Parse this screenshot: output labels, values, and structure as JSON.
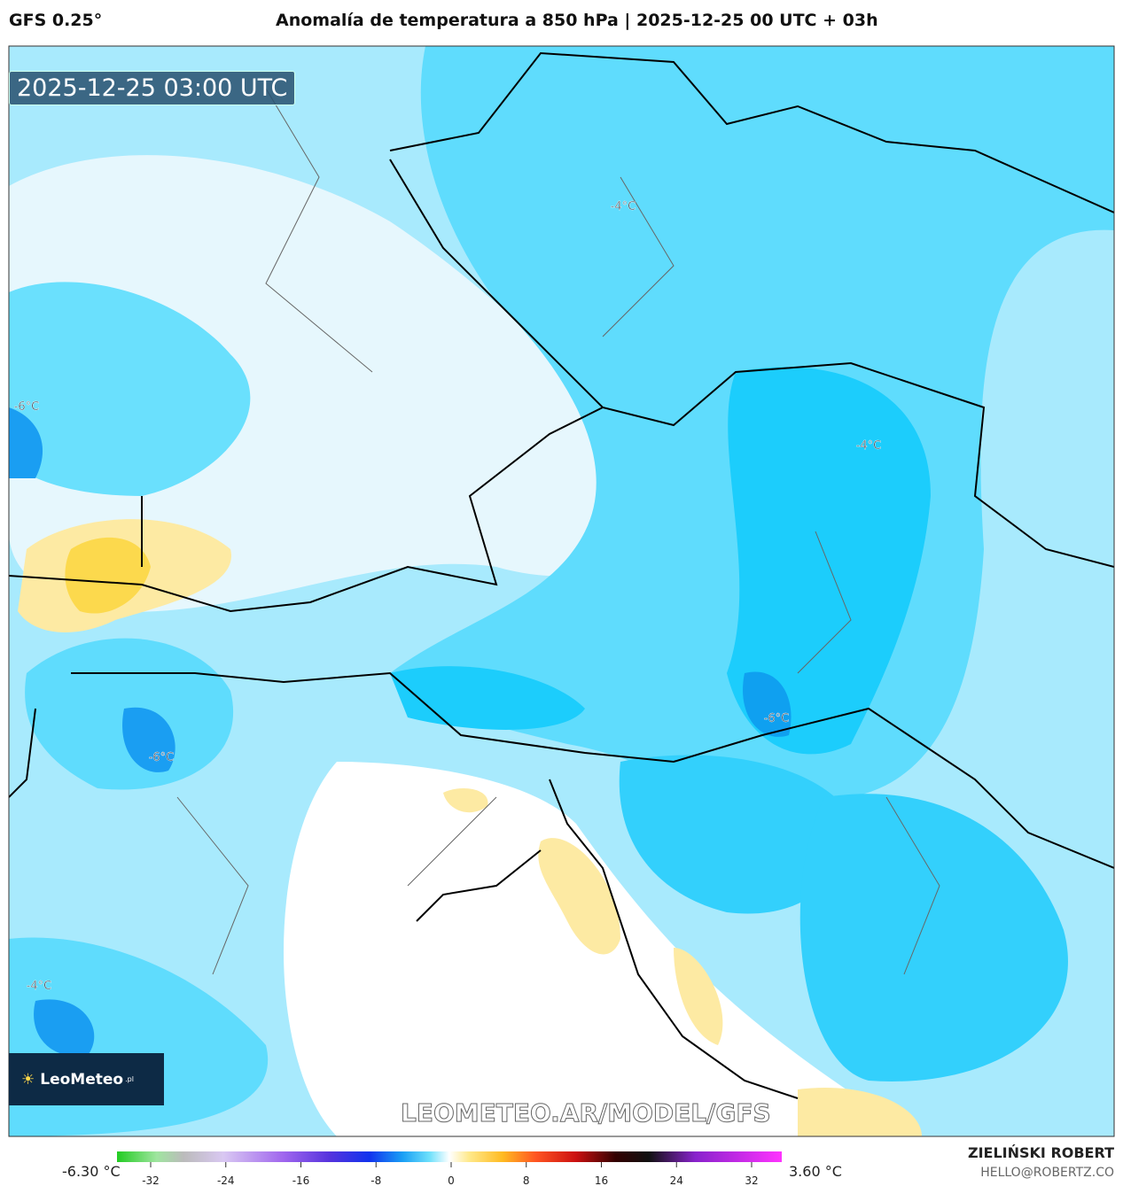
{
  "header": {
    "model": "GFS 0.25°",
    "title": "Anomalía de temperatura a 850 hPa | 2025-12-25 00 UTC + 03h"
  },
  "map": {
    "timestamp": "2025-12-25 03:00 UTC",
    "contour_labels": [
      "-4°C",
      "-6°C",
      "-4°C",
      "-6°C",
      "-6°C",
      "-4°C"
    ],
    "logo": {
      "name": "LeoMeteo",
      "suffix": ".pl"
    },
    "watermark": "LEOMETEO.AR/MODEL/GFS"
  },
  "colorbar": {
    "min_label": "-6.30 °C",
    "max_label": "3.60 °C",
    "range": [
      -32,
      32
    ],
    "ticks": [
      -32,
      -24,
      -16,
      -8,
      0,
      8,
      16,
      24,
      32
    ]
  },
  "footer": {
    "author": "ZIELIŃSKI ROBERT",
    "email": "HELLO@ROBERTZ.CO"
  }
}
